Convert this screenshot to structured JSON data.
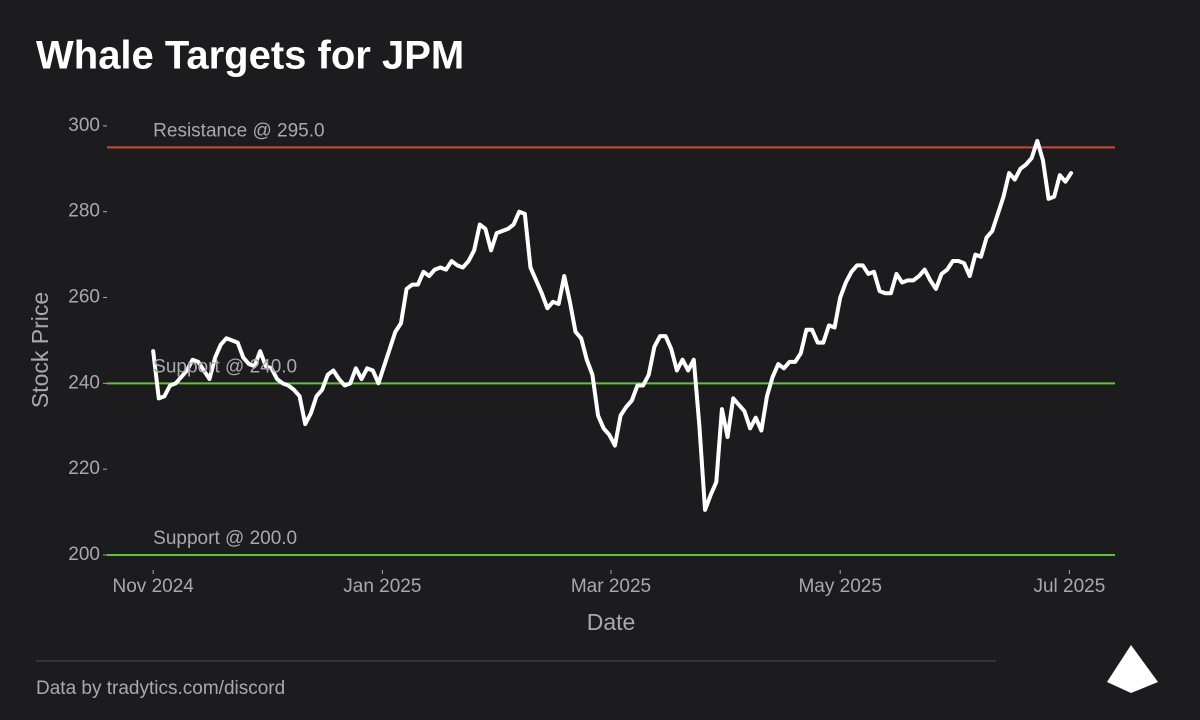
{
  "chart_data": {
    "type": "line",
    "title": "Whale Targets for JPM",
    "xlabel": "Date",
    "ylabel": "Stock Price",
    "footer": "Data by tradytics.com/discord",
    "series": [
      {
        "name": "JPM",
        "color": "#ffffff",
        "values": [
          247.5,
          236.5,
          237,
          239.5,
          240,
          241.5,
          243,
          245.5,
          245,
          243,
          241,
          246,
          249,
          250.5,
          250,
          249.5,
          246,
          244.5,
          244,
          247.5,
          244,
          243.5,
          241,
          240,
          239.5,
          238.5,
          237,
          230.5,
          233,
          237,
          238.5,
          242,
          243,
          241,
          239.5,
          240,
          243.5,
          241,
          243.5,
          243,
          240,
          244,
          248,
          252,
          254,
          262,
          263,
          263,
          266,
          265,
          266.5,
          267,
          266.5,
          268.5,
          267.5,
          267,
          268.5,
          271,
          277,
          276,
          271,
          275,
          275.5,
          276,
          277,
          280,
          279.5,
          267,
          264,
          261,
          257.5,
          259,
          258.5,
          265,
          259,
          252,
          250.5,
          245.5,
          242,
          232.5,
          229.5,
          228,
          225.5,
          232.5,
          234.5,
          236,
          239.5,
          239.5,
          242,
          248.5,
          251,
          251,
          248,
          243,
          245.5,
          243,
          245.5,
          230,
          210.5,
          214,
          217,
          234,
          227.5,
          236.5,
          235,
          233.5,
          229.5,
          232,
          229,
          237,
          241.5,
          244.5,
          243.5,
          245,
          245,
          247,
          252.5,
          252.5,
          249.5,
          249.5,
          253.5,
          253,
          260,
          263.5,
          266,
          267.5,
          267.5,
          265.5,
          266,
          261.5,
          261,
          261,
          265.5,
          263.5,
          264,
          264,
          265,
          266.5,
          264,
          262,
          265.5,
          266.5,
          268.5,
          268.5,
          268,
          265,
          270,
          269.5,
          274,
          275.5,
          279.5,
          283.5,
          289,
          287.5,
          290,
          291,
          292.5,
          296.5,
          292,
          283,
          283.5,
          288.5,
          287,
          289
        ]
      }
    ],
    "xlim": [
      -8.2,
      170.8
    ],
    "xticks": [
      {
        "value": 0,
        "label": "Nov 2024"
      },
      {
        "value": 40.7,
        "label": "Jan 2025"
      },
      {
        "value": 81.3,
        "label": "Mar 2025"
      },
      {
        "value": 122,
        "label": "May 2025"
      },
      {
        "value": 162.7,
        "label": "Jul 2025"
      }
    ],
    "ylim": [
      196.5,
      303.7
    ],
    "yticks": [
      200,
      220,
      240,
      260,
      280,
      300
    ],
    "grid": false,
    "levels": [
      {
        "value": 295,
        "label": "Resistance @ 295.0",
        "color": "#d0453a"
      },
      {
        "value": 240,
        "label": "Support @ 240.0",
        "color": "#5ec33a"
      },
      {
        "value": 200,
        "label": "Support @ 200.0",
        "color": "#5ec33a"
      }
    ]
  }
}
